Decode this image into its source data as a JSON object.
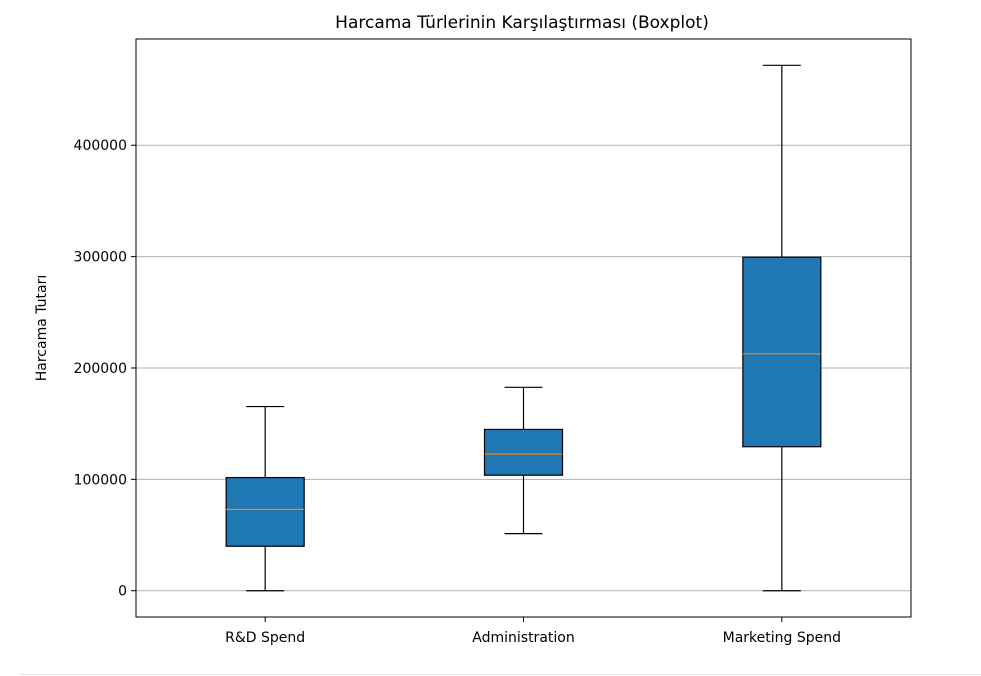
{
  "chart_data": {
    "type": "boxplot",
    "title": "Harcama Türlerinin Karşılaştırması (Boxplot)",
    "xlabel": "",
    "ylabel": "Harcama Tutarı",
    "categories": [
      "R&D Spend",
      "Administration",
      "Marketing Spend"
    ],
    "boxes": [
      {
        "category": "R&D Spend",
        "whisker_low": 0,
        "q1": 39936,
        "median": 73051,
        "q3": 101602,
        "whisker_high": 165349
      },
      {
        "category": "Administration",
        "whisker_low": 51283,
        "q1": 103731,
        "median": 122700,
        "q3": 144842,
        "whisker_high": 182646
      },
      {
        "category": "Marketing Spend",
        "whisker_low": 0,
        "q1": 129300,
        "median": 212716,
        "q3": 299469,
        "whisker_high": 471784
      }
    ],
    "ylim": [
      -23600,
      495400
    ],
    "yticks": [
      0,
      100000,
      200000,
      300000,
      400000
    ],
    "ytick_labels": [
      "0",
      "100000",
      "200000",
      "300000",
      "400000"
    ],
    "grid": "y",
    "colors": {
      "box_fill": "#1f77b4",
      "median": "#ff7f0e",
      "grid": "#b0b0b0",
      "edge": "#000000"
    }
  }
}
